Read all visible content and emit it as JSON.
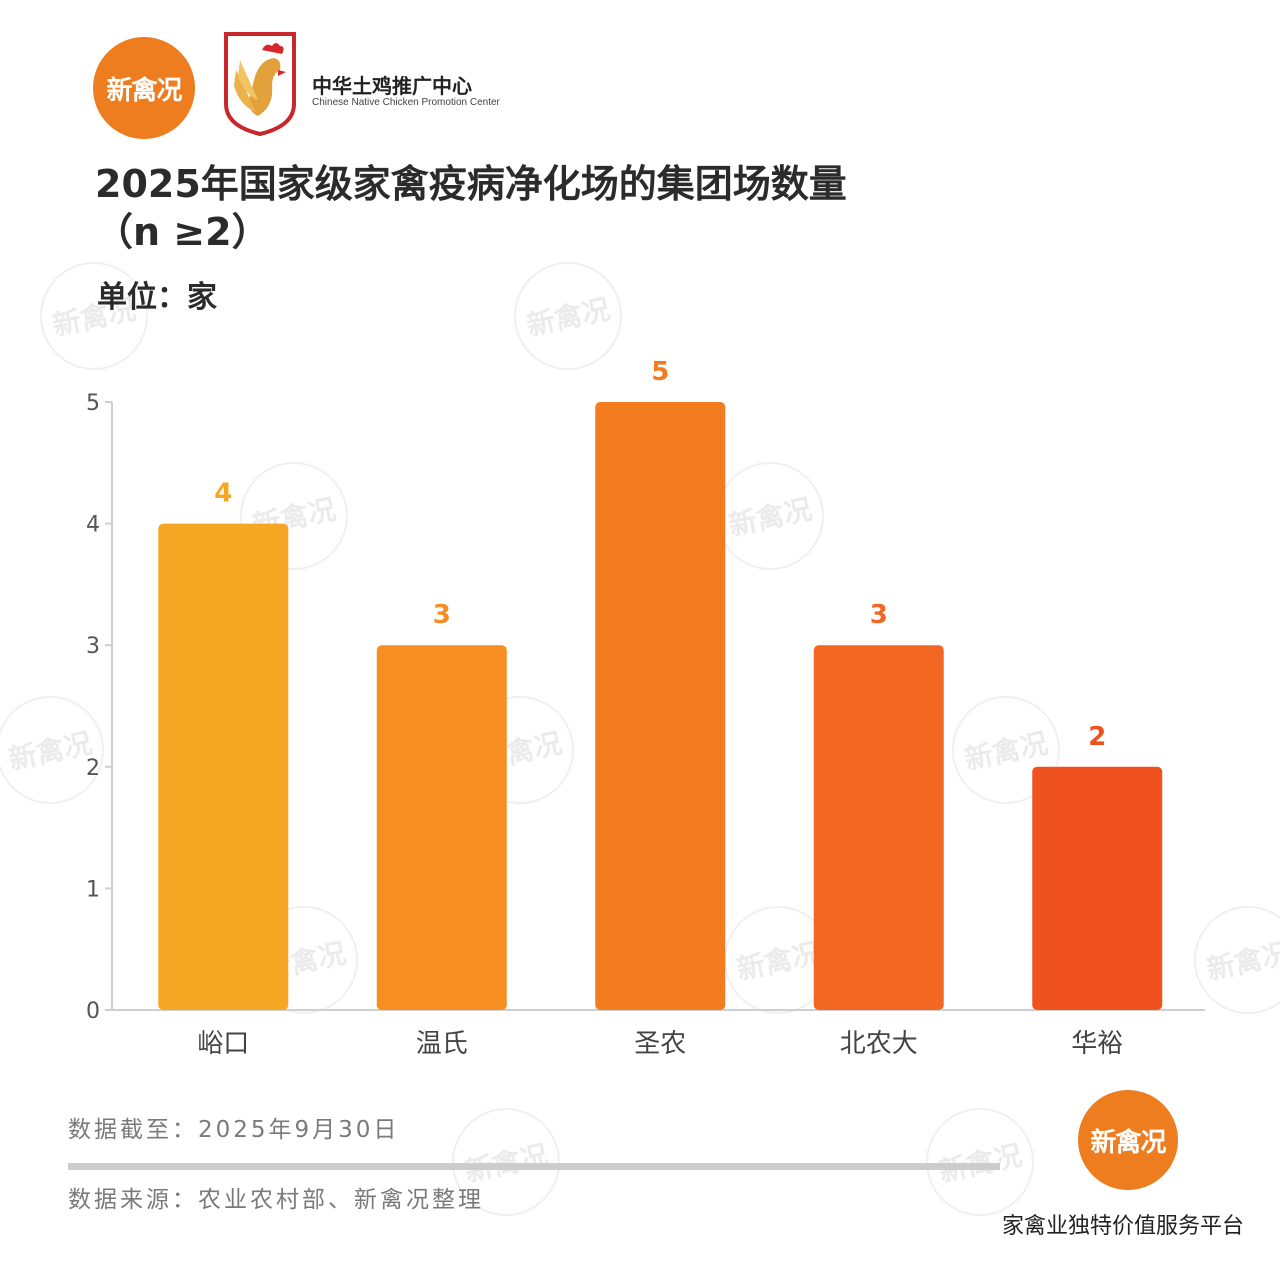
{
  "header": {
    "brand_logo_text": "新禽况",
    "org_name_cn": "中华土鸡推广中心",
    "org_name_en": "Chinese Native Chicken Promotion Center"
  },
  "title_line1": "2025年国家级家禽疫病净化场的集团场数量",
  "title_line2": "（n ≥2）",
  "unit_label": "单位：家",
  "watermark_text": "新禽况",
  "chart_data": {
    "type": "bar",
    "categories": [
      "峪口",
      "温氏",
      "圣农",
      "北农大",
      "华裕"
    ],
    "values": [
      4,
      3,
      5,
      3,
      2
    ],
    "bar_colors": [
      "#f5a623",
      "#f68e22",
      "#f47c20",
      "#f26722",
      "#f0521f"
    ],
    "label_colors": [
      "#f5a623",
      "#f68e22",
      "#f47c20",
      "#f26722",
      "#f0521f"
    ],
    "yticks": [
      0,
      1,
      2,
      3,
      4,
      5
    ],
    "ylim": [
      0,
      5
    ],
    "title": "2025年国家级家禽疫病净化场的集团场数量（n ≥2）",
    "xlabel": "",
    "ylabel": "",
    "grid": false
  },
  "footer": {
    "date_note": "数据截至：2025年9月30日",
    "source_note": "数据来源：农业农村部、新禽况整理",
    "brand_logo_text": "新禽况",
    "slogan": "家禽业独特价值服务平台"
  }
}
